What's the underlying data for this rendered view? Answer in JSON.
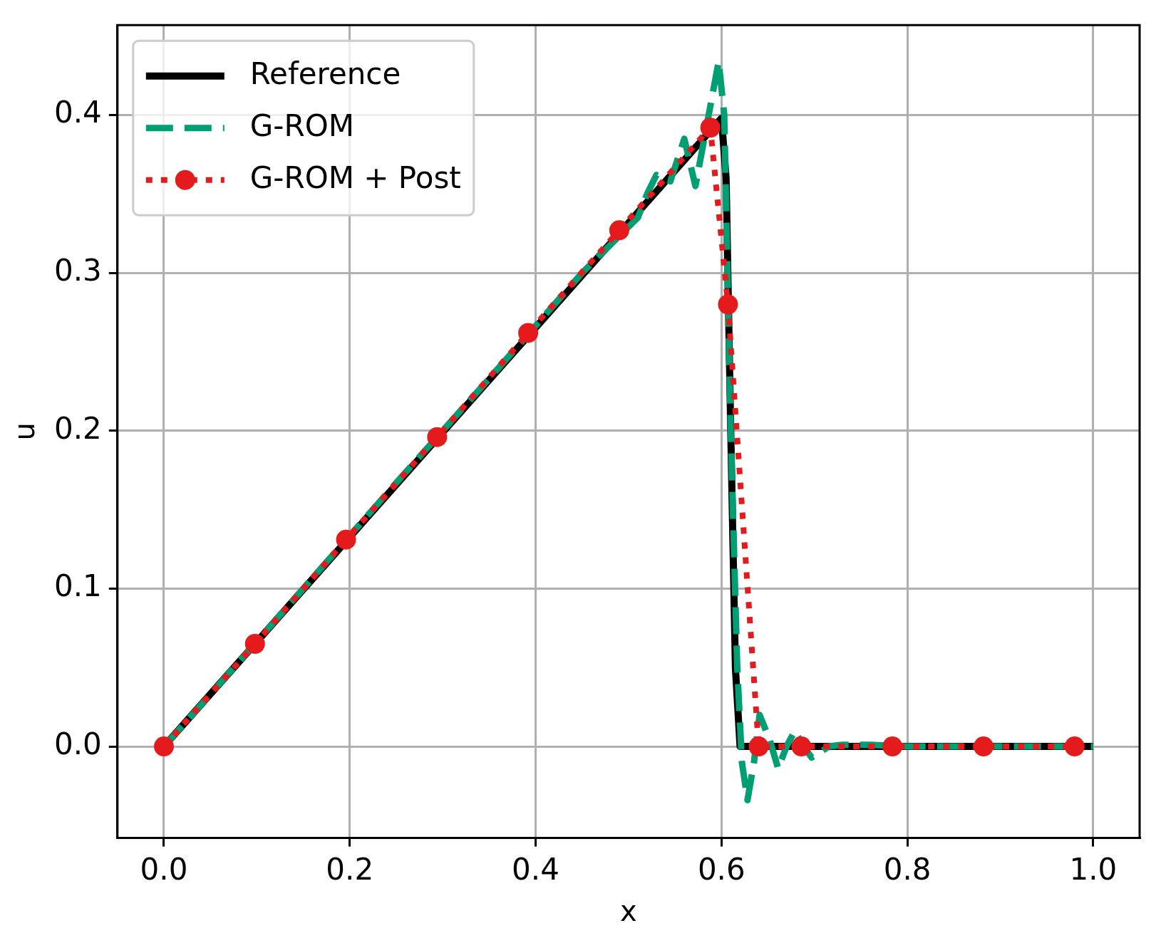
{
  "chart_data": {
    "type": "line",
    "xlabel": "x",
    "ylabel": "u",
    "xlim": [
      -0.05,
      1.05
    ],
    "ylim": [
      -0.058,
      0.457
    ],
    "xticks": [
      {
        "value": 0,
        "label": "0.0"
      },
      {
        "value": 0.2,
        "label": "0.2"
      },
      {
        "value": 0.4,
        "label": "0.4"
      },
      {
        "value": 0.6,
        "label": "0.6"
      },
      {
        "value": 0.8,
        "label": "0.8"
      },
      {
        "value": 1,
        "label": "1.0"
      }
    ],
    "yticks": [
      {
        "value": 0,
        "label": "0.0"
      },
      {
        "value": 0.1,
        "label": "0.1"
      },
      {
        "value": 0.2,
        "label": "0.2"
      },
      {
        "value": 0.3,
        "label": "0.3"
      },
      {
        "value": 0.4,
        "label": "0.4"
      }
    ],
    "grid": true,
    "legend": "top left",
    "series": [
      {
        "name": "Reference",
        "color": "#000000",
        "line_style": "solid",
        "marker": "none",
        "x": [
          0,
          0.6,
          0.605,
          0.61,
          0.615,
          0.62,
          1.0
        ],
        "values": [
          0,
          0.398,
          0.36,
          0.2,
          0.05,
          0,
          0
        ]
      },
      {
        "name": "G-ROM",
        "color": "#009e73",
        "line_style": "dashed",
        "marker": "none",
        "x": [
          0,
          0.05,
          0.15,
          0.25,
          0.35,
          0.45,
          0.51,
          0.52,
          0.53,
          0.545,
          0.56,
          0.572,
          0.597,
          0.603,
          0.61,
          0.617,
          0.622,
          0.628,
          0.635,
          0.641,
          0.652,
          0.661,
          0.67,
          0.679,
          0.688,
          0.697,
          0.706,
          0.715,
          0.73,
          0.76,
          0.8,
          1.0
        ],
        "values": [
          0,
          0.033,
          0.1,
          0.167,
          0.233,
          0.3,
          0.335,
          0.35,
          0.362,
          0.358,
          0.385,
          0.355,
          0.434,
          0.4,
          0.2,
          0.05,
          -0.01,
          -0.034,
          -0.01,
          0.02,
          0.004,
          -0.014,
          0.0,
          0.01,
          0.0,
          -0.007,
          -0.004,
          0.0,
          0.001,
          0.001,
          0,
          0
        ]
      },
      {
        "name": "G-ROM + Post",
        "color": "#e41a1c",
        "line_style": "dotted",
        "marker": "circle",
        "x": [
          0,
          0.098,
          0.196,
          0.294,
          0.392,
          0.49,
          0.588,
          0.607,
          0.64,
          0.686,
          0.784,
          0.882,
          0.98
        ],
        "values": [
          0,
          0.065,
          0.131,
          0.196,
          0.262,
          0.327,
          0.392,
          0.28,
          0,
          0,
          0,
          0,
          0
        ]
      }
    ]
  }
}
